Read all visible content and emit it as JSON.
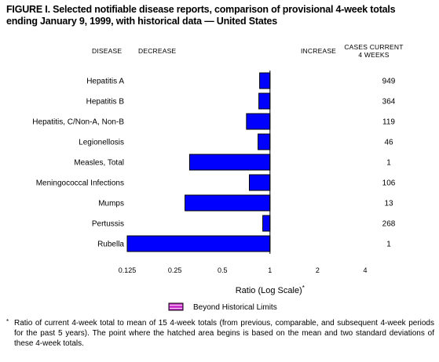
{
  "figure": {
    "title_line1": "FIGURE I. Selected notifiable disease reports, comparison of provisional 4-week totals",
    "title_line2": "ending January 9, 1999, with historical data — United States"
  },
  "headers": {
    "disease": "DISEASE",
    "decrease": "DECREASE",
    "increase": "INCREASE",
    "cases_line1": "CASES CURRENT",
    "cases_line2": "4 WEEKS"
  },
  "legend": {
    "label": "Beyond Historical Limits",
    "color": "#cc33cc"
  },
  "footnote": {
    "marker": "*",
    "text": "Ratio of current 4-week total to mean of 15 4-week totals (from previous, comparable, and subsequent 4-week periods for the past 5 years). The point where the hatched area begins is based on the mean and two standard deviations of these 4-week totals."
  },
  "colors": {
    "bar": "#0000ff",
    "bar_stroke": "#000000"
  },
  "chart_data": {
    "type": "bar",
    "orientation": "horizontal",
    "scale": "log2",
    "baseline": 1,
    "categories": [
      "Hepatitis A",
      "Hepatitis B",
      "Hepatitis, C/Non-A, Non-B",
      "Legionellosis",
      "Measles, Total",
      "Meningococcal Infections",
      "Mumps",
      "Pertussis",
      "Rubella"
    ],
    "values": [
      0.86,
      0.85,
      0.71,
      0.84,
      0.31,
      0.74,
      0.29,
      0.9,
      0.125
    ],
    "cases": [
      "949",
      "364",
      "119",
      "46",
      "1",
      "106",
      "13",
      "268",
      "1"
    ],
    "xlim": [
      0.125,
      4
    ],
    "ticks": [
      {
        "value": 0.125,
        "label": "0.125"
      },
      {
        "value": 0.25,
        "label": "0.25"
      },
      {
        "value": 0.5,
        "label": "0.5"
      },
      {
        "value": 1,
        "label": "1"
      },
      {
        "value": 2,
        "label": "2"
      },
      {
        "value": 4,
        "label": "4"
      }
    ],
    "xlabel": "Ratio (Log Scale)",
    "xlabel_marker": "*"
  }
}
